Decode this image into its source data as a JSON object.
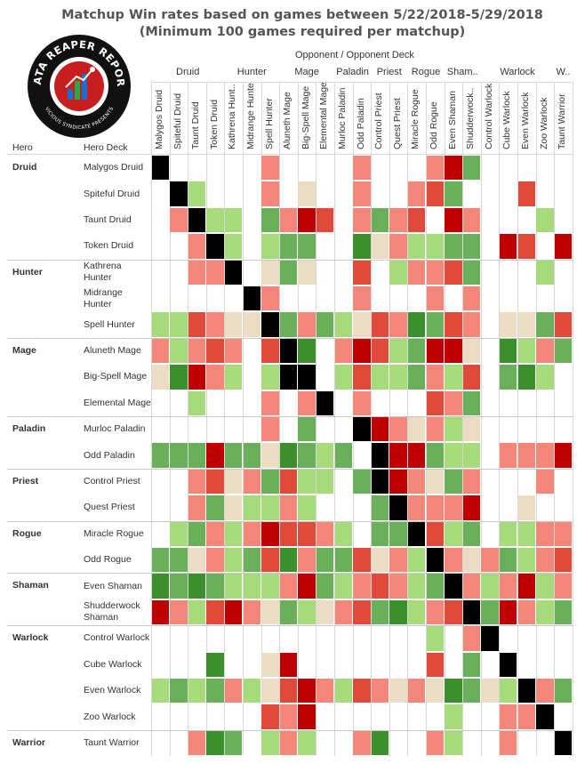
{
  "title": "Matchup Win rates based on games between 5/22/2018-5/29/2018",
  "subtitle": "(Minimum 100 games required per matchup)",
  "logo": {
    "text_top": "DATA REAPER REPORT",
    "text_bottom": "VICIOUS SYNDICATE PRESENTS",
    "colors": {
      "ring": "#111111",
      "badge": "#c81e1e",
      "bars": [
        "#1a6fd1",
        "#2aa84a",
        "#1a6fd1"
      ]
    }
  },
  "header": {
    "axis_title": "Opponent  /  Opponent Deck",
    "hero_label": "Hero",
    "deck_label": "Hero Deck"
  },
  "legend_colors": {
    "dark_red": "#c00000",
    "red": "#e04a3a",
    "salmon": "#f4867a",
    "beige": "#ebdcc3",
    "light_green": "#a6da7a",
    "green": "#6aaf5a",
    "dark_green": "#3b8f2c",
    "mirror": "#000000"
  },
  "chart_data": {
    "type": "heatmap",
    "title": "Matchup Win rates based on games between 5/22/2018-5/29/2018",
    "subtitle": "(Minimum 100 games required per matchup)",
    "xlabel": "Opponent  /  Opponent Deck",
    "ylabel": "Hero / Hero Deck",
    "groups": [
      {
        "name": "Druid",
        "short": "Druid",
        "count": 4
      },
      {
        "name": "Hunter",
        "short": "Hunter",
        "count": 3
      },
      {
        "name": "Mage",
        "short": "Mage",
        "count": 3
      },
      {
        "name": "Paladin",
        "short": "Paladin",
        "count": 2
      },
      {
        "name": "Priest",
        "short": "Priest",
        "count": 2
      },
      {
        "name": "Rogue",
        "short": "Rogue",
        "count": 2
      },
      {
        "name": "Shaman",
        "short": "Sham..",
        "count": 2
      },
      {
        "name": "Warlock",
        "short": "Warlock",
        "count": 4
      },
      {
        "name": "Warrior",
        "short": "W..",
        "count": 1
      }
    ],
    "columns": [
      "Malygos Druid",
      "Spiteful Druid",
      "Taunt Druid",
      "Token Druid",
      "Kathrena Hunt..",
      "Midrange Hunter",
      "Spell Hunter",
      "Aluneth Mage",
      "Big-Spell Mage",
      "Elemental Mage",
      "Murloc Paladin",
      "Odd Paladin",
      "Control Priest",
      "Quest Priest",
      "Miracle Rogue",
      "Odd Rogue",
      "Even Shaman",
      "Shudderwock..",
      "Control Warlock",
      "Cube Warlock",
      "Even Warlock",
      "Zoo Warlock",
      "Taunt Warrior"
    ],
    "rows": [
      {
        "hero": "Druid",
        "deck": "Malygos Druid"
      },
      {
        "hero": "",
        "deck": "Spiteful Druid"
      },
      {
        "hero": "",
        "deck": "Taunt Druid"
      },
      {
        "hero": "",
        "deck": "Token Druid"
      },
      {
        "hero": "Hunter",
        "deck": "Kathrena Hunter"
      },
      {
        "hero": "",
        "deck": "Midrange Hunter"
      },
      {
        "hero": "",
        "deck": "Spell Hunter"
      },
      {
        "hero": "Mage",
        "deck": "Aluneth Mage"
      },
      {
        "hero": "",
        "deck": "Big-Spell Mage"
      },
      {
        "hero": "",
        "deck": "Elemental Mage"
      },
      {
        "hero": "Paladin",
        "deck": "Murloc Paladin"
      },
      {
        "hero": "",
        "deck": "Odd Paladin"
      },
      {
        "hero": "Priest",
        "deck": "Control Priest"
      },
      {
        "hero": "",
        "deck": "Quest Priest"
      },
      {
        "hero": "Rogue",
        "deck": "Miracle Rogue"
      },
      {
        "hero": "",
        "deck": "Odd Rogue"
      },
      {
        "hero": "Shaman",
        "deck": "Even Shaman"
      },
      {
        "hero": "",
        "deck": "Shudderwock Shaman"
      },
      {
        "hero": "Warlock",
        "deck": "Control Warlock"
      },
      {
        "hero": "",
        "deck": "Cube Warlock"
      },
      {
        "hero": "",
        "deck": "Even Warlock"
      },
      {
        "hero": "",
        "deck": "Zoo Warlock"
      },
      {
        "hero": "Warrior",
        "deck": "Taunt Warrior"
      }
    ],
    "color_key": {
      "K": "black (mirror)",
      "D": "dark red",
      "R": "red",
      "S": "salmon",
      "B": "beige",
      "L": "light green",
      "G": "green",
      "E": "dark green",
      ".": "no data"
    },
    "matrix": [
      "K.....S....S...SDG.....",
      ".KL...S.B..S..SRG...R..",
      ".SKLL.GSDR.SGSR.DS...L.",
      "..SKL.LGG..EBSLLGG.DR.D",
      "..SSK.BGB..R.LSSRG...L.",
      ".....KS....S...S.S.....",
      "LLRSBBKGSGLBRSEGRS.BBGR",
      "SLSRS.RKE.SDRLGDDB.ELSG",
      "BEDSL.LKK.LRLLGSLR.GEL.",
      "..L...S.SK.S...RSG.....",
      "......S.G..KDSBSLB.....",
      "GGGDGGBEGLG.KDDGLL.SSSD",
      "..SRBSGRLL.GKDSBGS...S.",
      "..SGBLLSL...GKSSSD..B..",
      ".LGSLSDRRSL.GGKRLG.LLSS",
      "GGBSLGRESGGRBSLKSBSGLSR",
      "EGEGLLLSDGLSRSLGKSLSDLS",
      "DSLRDSBGLBSRGELSRKGDSLG",
      "...............L.SK....",
      "...E..BD.......R.G.K...",
      "LGLGSLBRDSLRSBSBEGBLKSG",
      "......RSD.......L..SSK.",
      "..SEG.LSL..SE..SL..S..K"
    ]
  }
}
